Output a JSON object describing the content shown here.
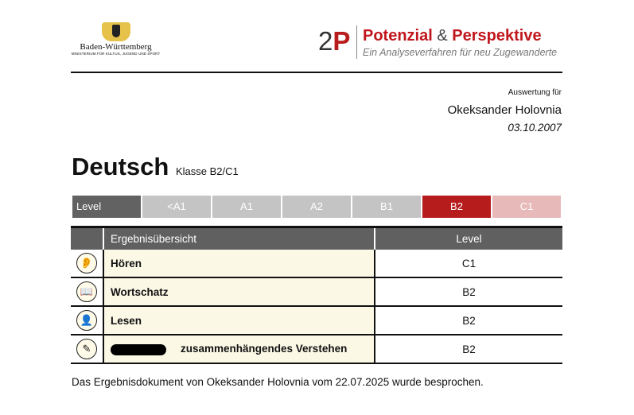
{
  "header": {
    "ministry_logo": {
      "name": "Baden-Württemberg",
      "sub": "MINISTERIUM FÜR KULTUS, JUGEND UND SPORT"
    },
    "brand": {
      "mark_num": "2",
      "mark_letter": "P",
      "title_a": "Potenzial",
      "amp": "&",
      "title_b": "Perspektive",
      "subtitle": "Ein Analyseverfahren für neu Zugewanderte"
    }
  },
  "evaluation": {
    "label": "Auswertung für",
    "person": "Okeksander Holovnia",
    "date": "03.10.2007"
  },
  "subject": {
    "title": "Deutsch",
    "class": "Klasse B2/C1"
  },
  "level_scale": {
    "label": "Level",
    "levels": [
      "<A1",
      "A1",
      "A2",
      "B1",
      "B2",
      "C1"
    ],
    "active": "B2",
    "colors": {
      "active": "#b71c1c",
      "next": "#e8b9b9",
      "inactive": "#c4c4c4"
    }
  },
  "results": {
    "headers": [
      "Ergebnisübersicht",
      "Level"
    ],
    "rows": [
      {
        "icon": "ear-icon",
        "name": "Hören",
        "level": "C1"
      },
      {
        "icon": "book-icon",
        "name": "Wortschatz",
        "level": "B2"
      },
      {
        "icon": "reader-icon",
        "name": "Lesen",
        "level": "B2"
      },
      {
        "icon": "pen-icon",
        "name": "zusammenhängendes Verstehen",
        "level": "B2"
      }
    ]
  },
  "footer": "Das Ergebnisdokument von Okeksander Holovnia vom 22.07.2025 wurde besprochen."
}
